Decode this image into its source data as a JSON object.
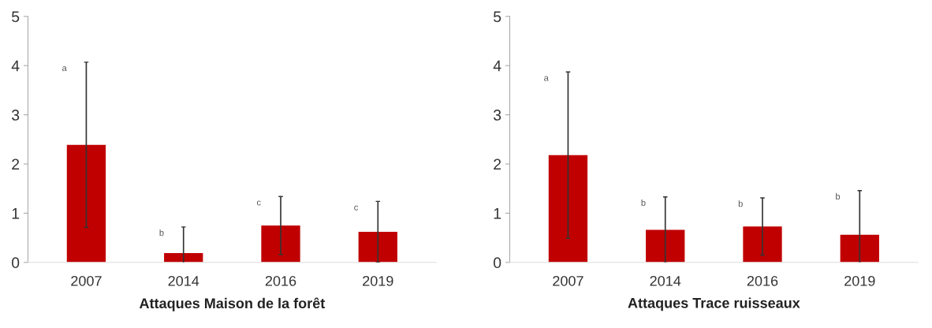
{
  "chart_data": [
    {
      "type": "bar",
      "xlabel": "Attaques Maison de la forêt",
      "categories": [
        "2007",
        "2014",
        "2016",
        "2019"
      ],
      "values": [
        2.39,
        0.19,
        0.75,
        0.62
      ],
      "errors": [
        1.68,
        0.53,
        0.59,
        0.62
      ],
      "color": "#c00000",
      "ylim": [
        0,
        5
      ],
      "yticks": [
        0,
        1,
        2,
        3,
        4,
        5
      ],
      "grid": false,
      "legend": false,
      "annotations": [
        "a",
        "b",
        "c",
        "c"
      ]
    },
    {
      "type": "bar",
      "xlabel": "Attaques Trace ruisseaux",
      "categories": [
        "2007",
        "2014",
        "2016",
        "2019"
      ],
      "values": [
        2.18,
        0.66,
        0.73,
        0.56
      ],
      "errors": [
        1.69,
        0.67,
        0.58,
        0.9
      ],
      "color": "#c00000",
      "ylim": [
        0,
        5
      ],
      "yticks": [
        0,
        1,
        2,
        3,
        4,
        5
      ],
      "grid": false,
      "legend": false,
      "annotations": [
        "a",
        "b",
        "b",
        "b"
      ]
    }
  ]
}
